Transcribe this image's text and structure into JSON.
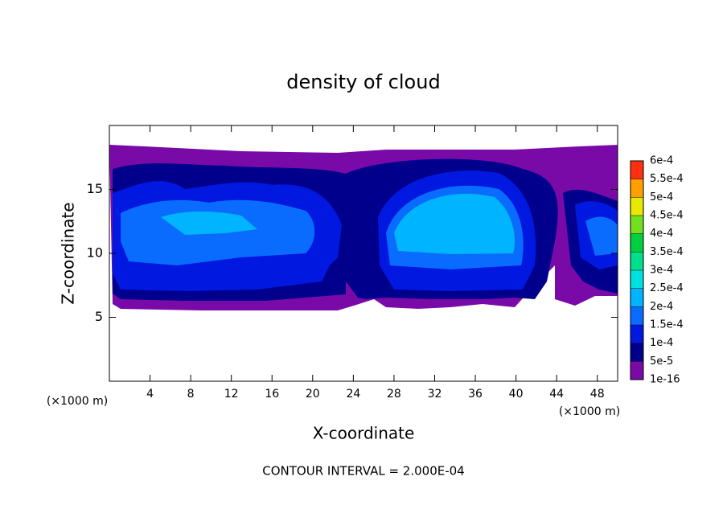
{
  "chart_data": {
    "type": "contour",
    "title": "density of cloud",
    "x_label": "X-coordinate",
    "y_label": "Z-coordinate",
    "x_unit": "(×1000 m)",
    "y_unit": "(×1000 m)",
    "annotation": "CONTOUR INTERVAL = 2.000E-04",
    "xlim": [
      0,
      50
    ],
    "ylim": [
      0,
      20
    ],
    "xticks": [
      4,
      8,
      12,
      16,
      20,
      24,
      28,
      32,
      36,
      40,
      44,
      48
    ],
    "yticks": [
      5,
      10,
      15
    ],
    "colorbar": {
      "ticks": [
        {
          "value": 1e-16,
          "label": "1e-16"
        },
        {
          "value": 5e-05,
          "label": "5e-5"
        },
        {
          "value": 0.0001,
          "label": "1e-4"
        },
        {
          "value": 0.00015,
          "label": "1.5e-4"
        },
        {
          "value": 0.0002,
          "label": "2e-4"
        },
        {
          "value": 0.00025,
          "label": "2.5e-4"
        },
        {
          "value": 0.0003,
          "label": "3e-4"
        },
        {
          "value": 0.00035,
          "label": "3.5e-4"
        },
        {
          "value": 0.0004,
          "label": "4e-4"
        },
        {
          "value": 0.00045,
          "label": "4.5e-4"
        },
        {
          "value": 0.0005,
          "label": "5e-4"
        },
        {
          "value": 0.00055,
          "label": "5.5e-4"
        },
        {
          "value": 0.0006,
          "label": "6e-4"
        }
      ],
      "colors": [
        "#7a0aa8",
        "#00008c",
        "#0018e0",
        "#0a6cff",
        "#00b4ff",
        "#00e0e0",
        "#00e08c",
        "#00d040",
        "#70e020",
        "#e8e800",
        "#ffa000",
        "#ff3010",
        "#ff8a8a"
      ]
    }
  }
}
